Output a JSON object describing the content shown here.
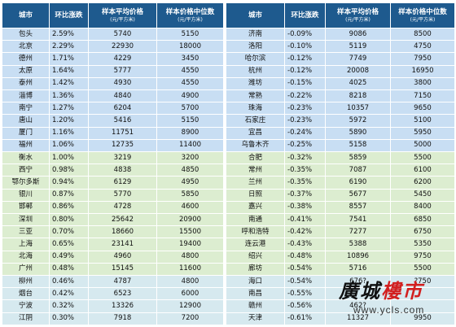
{
  "headers": {
    "city": "城市",
    "change": "环比涨跌",
    "avg_price": "样本平均价格",
    "avg_unit": "(元/平方米)",
    "median_price": "样本价格中位数",
    "median_unit": "(元/平方米)"
  },
  "left": [
    {
      "city": "包头",
      "change": "2.59%",
      "avg": "5740",
      "median": "5150",
      "group": "blue"
    },
    {
      "city": "北京",
      "change": "2.29%",
      "avg": "22930",
      "median": "18000",
      "group": "blue"
    },
    {
      "city": "德州",
      "change": "1.71%",
      "avg": "4229",
      "median": "3450",
      "group": "blue"
    },
    {
      "city": "太原",
      "change": "1.64%",
      "avg": "5777",
      "median": "4550",
      "group": "blue"
    },
    {
      "city": "泰州",
      "change": "1.42%",
      "avg": "4930",
      "median": "4550",
      "group": "blue"
    },
    {
      "city": "淄博",
      "change": "1.36%",
      "avg": "4840",
      "median": "4900",
      "group": "blue"
    },
    {
      "city": "南宁",
      "change": "1.27%",
      "avg": "6204",
      "median": "5700",
      "group": "blue"
    },
    {
      "city": "唐山",
      "change": "1.20%",
      "avg": "5416",
      "median": "5150",
      "group": "blue"
    },
    {
      "city": "厦门",
      "change": "1.16%",
      "avg": "11751",
      "median": "8900",
      "group": "blue"
    },
    {
      "city": "福州",
      "change": "1.06%",
      "avg": "12735",
      "median": "11400",
      "group": "blue"
    },
    {
      "city": "衡水",
      "change": "1.00%",
      "avg": "3219",
      "median": "3200",
      "group": "green"
    },
    {
      "city": "西宁",
      "change": "0.98%",
      "avg": "4838",
      "median": "4850",
      "group": "green"
    },
    {
      "city": "鄂尔多斯",
      "change": "0.94%",
      "avg": "6129",
      "median": "4950",
      "group": "green"
    },
    {
      "city": "银川",
      "change": "0.87%",
      "avg": "5770",
      "median": "5850",
      "group": "green"
    },
    {
      "city": "邯郸",
      "change": "0.86%",
      "avg": "4728",
      "median": "4600",
      "group": "green"
    },
    {
      "city": "深圳",
      "change": "0.80%",
      "avg": "25642",
      "median": "20900",
      "group": "green"
    },
    {
      "city": "三亚",
      "change": "0.70%",
      "avg": "18660",
      "median": "15500",
      "group": "green"
    },
    {
      "city": "上海",
      "change": "0.65%",
      "avg": "23141",
      "median": "19400",
      "group": "green"
    },
    {
      "city": "北海",
      "change": "0.49%",
      "avg": "4960",
      "median": "4800",
      "group": "green"
    },
    {
      "city": "广州",
      "change": "0.48%",
      "avg": "15145",
      "median": "11600",
      "group": "green"
    },
    {
      "city": "柳州",
      "change": "0.46%",
      "avg": "4787",
      "median": "4800",
      "group": "teal"
    },
    {
      "city": "烟台",
      "change": "0.42%",
      "avg": "6523",
      "median": "6000",
      "group": "teal"
    },
    {
      "city": "宁波",
      "change": "0.32%",
      "avg": "13326",
      "median": "12900",
      "group": "teal"
    },
    {
      "city": "江阴",
      "change": "0.30%",
      "avg": "7918",
      "median": "7200",
      "group": "teal"
    }
  ],
  "right": [
    {
      "city": "济南",
      "change": "-0.09%",
      "avg": "9086",
      "median": "8500",
      "group": "blue"
    },
    {
      "city": "洛阳",
      "change": "-0.10%",
      "avg": "5119",
      "median": "4750",
      "group": "blue"
    },
    {
      "city": "哈尔滨",
      "change": "-0.12%",
      "avg": "7749",
      "median": "7950",
      "group": "blue"
    },
    {
      "city": "杭州",
      "change": "-0.12%",
      "avg": "20008",
      "median": "16950",
      "group": "blue"
    },
    {
      "city": "潍坊",
      "change": "-0.15%",
      "avg": "4025",
      "median": "3800",
      "group": "blue"
    },
    {
      "city": "常熟",
      "change": "-0.22%",
      "avg": "8218",
      "median": "7150",
      "group": "blue"
    },
    {
      "city": "珠海",
      "change": "-0.23%",
      "avg": "10357",
      "median": "9650",
      "group": "blue"
    },
    {
      "city": "石家庄",
      "change": "-0.23%",
      "avg": "5972",
      "median": "5100",
      "group": "blue"
    },
    {
      "city": "宜昌",
      "change": "-0.24%",
      "avg": "5890",
      "median": "5950",
      "group": "blue"
    },
    {
      "city": "乌鲁木齐",
      "change": "-0.25%",
      "avg": "5158",
      "median": "5000",
      "group": "blue"
    },
    {
      "city": "合肥",
      "change": "-0.32%",
      "avg": "5859",
      "median": "5500",
      "group": "green"
    },
    {
      "city": "常州",
      "change": "-0.35%",
      "avg": "7087",
      "median": "6100",
      "group": "green"
    },
    {
      "city": "兰州",
      "change": "-0.35%",
      "avg": "6190",
      "median": "6200",
      "group": "green"
    },
    {
      "city": "日照",
      "change": "-0.37%",
      "avg": "5677",
      "median": "5450",
      "group": "green"
    },
    {
      "city": "嘉兴",
      "change": "-0.38%",
      "avg": "8557",
      "median": "8400",
      "group": "green"
    },
    {
      "city": "南通",
      "change": "-0.41%",
      "avg": "7541",
      "median": "6850",
      "group": "green"
    },
    {
      "city": "呼和浩特",
      "change": "-0.42%",
      "avg": "7277",
      "median": "6750",
      "group": "green"
    },
    {
      "city": "连云港",
      "change": "-0.43%",
      "avg": "5388",
      "median": "5350",
      "group": "green"
    },
    {
      "city": "绍兴",
      "change": "-0.48%",
      "avg": "10896",
      "median": "9750",
      "group": "green"
    },
    {
      "city": "廊坊",
      "change": "-0.54%",
      "avg": "5716",
      "median": "5500",
      "group": "green"
    },
    {
      "city": "海口",
      "change": "-0.54%",
      "avg": "676?",
      "median": "?750",
      "group": "teal"
    },
    {
      "city": "南昌",
      "change": "-0.55%",
      "avg": "",
      "median": "",
      "group": "teal"
    },
    {
      "city": "赣州",
      "change": "-0.56%",
      "avg": "462?",
      "median": "",
      "group": "teal"
    },
    {
      "city": "天津",
      "change": "-0.61%",
      "avg": "11327",
      "median": "9950",
      "group": "teal"
    }
  ],
  "watermark": {
    "logo_black_1": "廣",
    "logo_black_2": "城",
    "logo_red_1": "樓",
    "logo_red_2": "市",
    "url": "www.ycls.com"
  }
}
